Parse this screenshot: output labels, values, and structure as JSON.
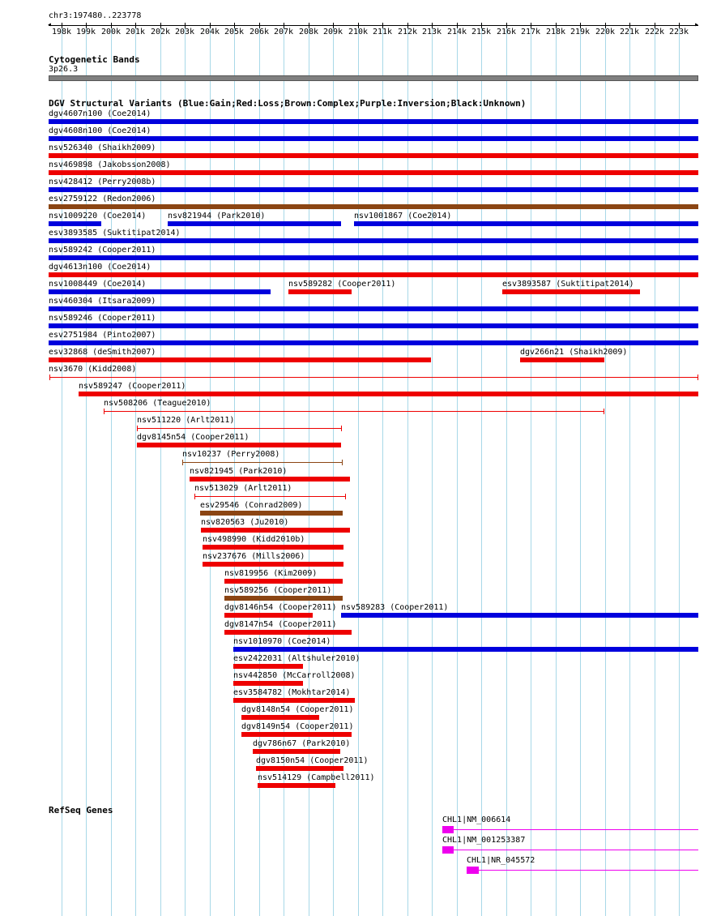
{
  "colors": {
    "gain": "#0000dd",
    "loss": "#ee0000",
    "complex": "#8b4513",
    "gene": "#ee00ee",
    "grid": "#a8d8e8",
    "band": "#808080"
  },
  "ruler": {
    "location": "chr3:197480..223778",
    "ticks": [
      "198k",
      "199k",
      "200k",
      "201k",
      "202k",
      "203k",
      "204k",
      "205k",
      "206k",
      "207k",
      "208k",
      "209k",
      "210k",
      "211k",
      "212k",
      "213k",
      "214k",
      "215k",
      "216k",
      "217k",
      "218k",
      "219k",
      "220k",
      "221k",
      "222k",
      "223k"
    ]
  },
  "cyto": {
    "title": "Cytogenetic Bands",
    "band": "3p26.3"
  },
  "dgv": {
    "title": "DGV Structural Variants (Blue:Gain;Red:Loss;Brown:Complex;Purple:Inversion;Black:Unknown)",
    "variants": [
      {
        "label": "dgv4607n100 (Coe2014)",
        "row": 0,
        "start": 197480,
        "end": 223778,
        "color": "gain",
        "style": "bar",
        "lstart": 197480
      },
      {
        "label": "dgv4608n100 (Coe2014)",
        "row": 1,
        "start": 197480,
        "end": 223778,
        "color": "gain",
        "style": "bar",
        "lstart": 197480
      },
      {
        "label": "nsv526340 (Shaikh2009)",
        "row": 2,
        "start": 197480,
        "end": 223778,
        "color": "loss",
        "style": "bar",
        "lstart": 197480
      },
      {
        "label": "nsv469898 (Jakobsson2008)",
        "row": 3,
        "start": 197480,
        "end": 223778,
        "color": "loss",
        "style": "bar",
        "lstart": 197480
      },
      {
        "label": "nsv428412 (Perry2008b)",
        "row": 4,
        "start": 197480,
        "end": 223778,
        "color": "gain",
        "style": "bar",
        "lstart": 197480
      },
      {
        "label": "esv2759122 (Redon2006)",
        "row": 5,
        "start": 197480,
        "end": 223778,
        "color": "complex",
        "style": "bar",
        "lstart": 197480
      },
      {
        "label": "nsv1009220 (Coe2014)",
        "row": 6,
        "start": 197480,
        "end": 199620,
        "color": "gain",
        "style": "bar",
        "lstart": 197480
      },
      {
        "label": "nsv821944 (Park2010)",
        "row": 6,
        "start": 202300,
        "end": 209320,
        "color": "gain",
        "style": "bar",
        "lstart": 202300
      },
      {
        "label": "nsv1001867 (Coe2014)",
        "row": 6,
        "start": 209850,
        "end": 223778,
        "color": "gain",
        "style": "bar",
        "lstart": 209850
      },
      {
        "label": "esv3893585 (Suktitipat2014)",
        "row": 7,
        "start": 197480,
        "end": 223778,
        "color": "gain",
        "style": "bar",
        "lstart": 197480
      },
      {
        "label": "nsv589242 (Cooper2011)",
        "row": 8,
        "start": 197480,
        "end": 223778,
        "color": "gain",
        "style": "bar",
        "lstart": 197480
      },
      {
        "label": "dgv4613n100 (Coe2014)",
        "row": 9,
        "start": 197480,
        "end": 223778,
        "color": "loss",
        "style": "bar",
        "lstart": 197480
      },
      {
        "label": "nsv1008449 (Coe2014)",
        "row": 10,
        "start": 197480,
        "end": 206480,
        "color": "gain",
        "style": "bar",
        "lstart": 197480
      },
      {
        "label": "nsv589282 (Cooper2011)",
        "row": 10,
        "start": 207180,
        "end": 209740,
        "color": "loss",
        "style": "bar",
        "lstart": 207180
      },
      {
        "label": "esv3893587 (Suktitipat2014)",
        "row": 10,
        "start": 215850,
        "end": 221420,
        "color": "loss",
        "style": "bar",
        "lstart": 215850
      },
      {
        "label": "nsv460304 (Itsara2009)",
        "row": 11,
        "start": 197480,
        "end": 223778,
        "color": "gain",
        "style": "bar",
        "lstart": 197480
      },
      {
        "label": "nsv589246 (Cooper2011)",
        "row": 12,
        "start": 197480,
        "end": 223778,
        "color": "gain",
        "style": "bar",
        "lstart": 197480
      },
      {
        "label": "esv2751984 (Pinto2007)",
        "row": 13,
        "start": 197480,
        "end": 223778,
        "color": "gain",
        "style": "bar",
        "lstart": 197480
      },
      {
        "label": "esv32868 (deSmith2007)",
        "row": 14,
        "start": 197480,
        "end": 212960,
        "color": "loss",
        "style": "bar",
        "lstart": 197480
      },
      {
        "label": "dgv266n21 (Shaikh2009)",
        "row": 14,
        "start": 216580,
        "end": 219990,
        "color": "loss",
        "style": "bar",
        "lstart": 216580
      },
      {
        "label": "nsv3670 (Kidd2008)",
        "row": 15,
        "start": 197510,
        "end": 223778,
        "color": "loss",
        "style": "thin",
        "lstart": 197480
      },
      {
        "label": "nsv589247 (Cooper2011)",
        "row": 16,
        "start": 198700,
        "end": 223778,
        "color": "loss",
        "style": "bar",
        "lstart": 198700
      },
      {
        "label": "nsv508206 (Teague2010)",
        "row": 17,
        "start": 199720,
        "end": 219970,
        "color": "loss",
        "style": "thin",
        "lstart": 199720
      },
      {
        "label": "nsv511220 (Arlt2011)",
        "row": 18,
        "start": 201060,
        "end": 209350,
        "color": "loss",
        "style": "thin",
        "lstart": 201060
      },
      {
        "label": "dgv8145n54 (Cooper2011)",
        "row": 19,
        "start": 201070,
        "end": 209330,
        "color": "loss",
        "style": "bar",
        "lstart": 201070
      },
      {
        "label": "nsv10237 (Perry2008)",
        "row": 20,
        "start": 202900,
        "end": 209390,
        "color": "complex",
        "style": "thin",
        "lstart": 202900
      },
      {
        "label": "nsv821945 (Park2010)",
        "row": 21,
        "start": 203190,
        "end": 209690,
        "color": "loss",
        "style": "bar",
        "lstart": 203190
      },
      {
        "label": "nsv513029 (Arlt2011)",
        "row": 22,
        "start": 203390,
        "end": 209520,
        "color": "loss",
        "style": "thin",
        "lstart": 203390
      },
      {
        "label": "esv29546 (Conrad2009)",
        "row": 23,
        "start": 203600,
        "end": 209390,
        "color": "complex",
        "style": "bar",
        "lstart": 203600
      },
      {
        "label": "nsv820563 (Ju2010)",
        "row": 24,
        "start": 203650,
        "end": 209680,
        "color": "loss",
        "style": "bar",
        "lstart": 203650
      },
      {
        "label": "nsv498990 (Kidd2010b)",
        "row": 25,
        "start": 203720,
        "end": 209420,
        "color": "loss",
        "style": "bar",
        "lstart": 203720
      },
      {
        "label": "nsv237676 (Mills2006)",
        "row": 26,
        "start": 203720,
        "end": 209420,
        "color": "loss",
        "style": "bar",
        "lstart": 203720
      },
      {
        "label": "nsv819956 (Kim2009)",
        "row": 27,
        "start": 204600,
        "end": 209390,
        "color": "loss",
        "style": "bar",
        "lstart": 204600
      },
      {
        "label": "nsv589256 (Cooper2011)",
        "row": 28,
        "start": 204600,
        "end": 209390,
        "color": "complex",
        "style": "bar",
        "lstart": 204600
      },
      {
        "label": "dgv8146n54 (Cooper2011)",
        "row": 29,
        "start": 204600,
        "end": 208170,
        "color": "loss",
        "style": "bar",
        "lstart": 204600
      },
      {
        "label": "nsv589283 (Cooper2011)",
        "row": 29,
        "start": 209320,
        "end": 223778,
        "color": "gain",
        "style": "bar",
        "lstart": 209320
      },
      {
        "label": "dgv8147n54 (Cooper2011)",
        "row": 30,
        "start": 204600,
        "end": 209740,
        "color": "loss",
        "style": "bar",
        "lstart": 204600
      },
      {
        "label": "nsv1010970 (Coe2014)",
        "row": 31,
        "start": 204970,
        "end": 223778,
        "color": "gain",
        "style": "bar",
        "lstart": 204970
      },
      {
        "label": "esv2422031 (Altshuler2010)",
        "row": 32,
        "start": 204970,
        "end": 207770,
        "color": "loss",
        "style": "bar",
        "lstart": 204970
      },
      {
        "label": "nsv442850 (McCarroll2008)",
        "row": 33,
        "start": 204970,
        "end": 207770,
        "color": "loss",
        "style": "bar",
        "lstart": 204970
      },
      {
        "label": "esv3584782 (Mokhtar2014)",
        "row": 34,
        "start": 204970,
        "end": 209870,
        "color": "loss",
        "style": "bar",
        "lstart": 204970
      },
      {
        "label": "dgv8148n54 (Cooper2011)",
        "row": 35,
        "start": 205270,
        "end": 208440,
        "color": "loss",
        "style": "bar",
        "lstart": 205270
      },
      {
        "label": "dgv8149n54 (Cooper2011)",
        "row": 36,
        "start": 205270,
        "end": 209740,
        "color": "loss",
        "style": "bar",
        "lstart": 205270
      },
      {
        "label": "dgv786n67 (Park2010)",
        "row": 37,
        "start": 205730,
        "end": 209300,
        "color": "loss",
        "style": "bar",
        "lstart": 205730
      },
      {
        "label": "dgv8150n54 (Cooper2011)",
        "row": 38,
        "start": 205890,
        "end": 209400,
        "color": "loss",
        "style": "bar",
        "lstart": 205890
      },
      {
        "label": "nsv514129 (Campbell2011)",
        "row": 39,
        "start": 205930,
        "end": 209080,
        "color": "loss",
        "style": "bar",
        "lstart": 205930
      }
    ]
  },
  "refseq": {
    "title": "RefSeq Genes",
    "genes": [
      {
        "label": "CHL1|NM_006614",
        "start": 213400,
        "exon_end": 213890,
        "end": 223778
      },
      {
        "label": "CHL1|NM_001253387",
        "start": 213400,
        "exon_end": 213890,
        "end": 223778
      },
      {
        "label": "CHL1|NR_045572",
        "start": 214410,
        "exon_end": 214900,
        "end": 223778
      }
    ]
  }
}
